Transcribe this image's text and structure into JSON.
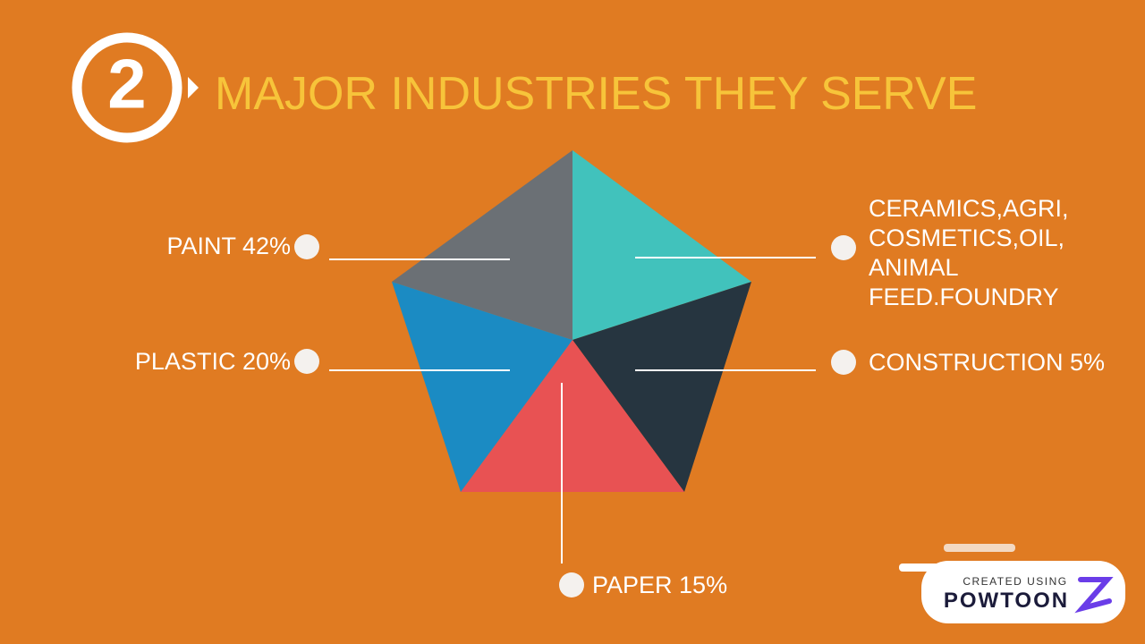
{
  "header": {
    "badge": "2",
    "title": "MAJOR INDUSTRIES THEY SERVE"
  },
  "segments": [
    {
      "label": [
        "PAINT 42%"
      ]
    },
    {
      "label": [
        "PLASTIC 20%"
      ]
    },
    {
      "label": [
        "PAPER 15%"
      ]
    },
    {
      "label": [
        "CONSTRUCTION 5%"
      ]
    },
    {
      "label": [
        "CERAMICS,AGRI,",
        "COSMETICS,OIL,",
        "ANIMAL",
        "FEED.FOUNDRY"
      ]
    }
  ],
  "watermark": {
    "caption": "CREATED USING",
    "brand": "POWTOON"
  }
}
